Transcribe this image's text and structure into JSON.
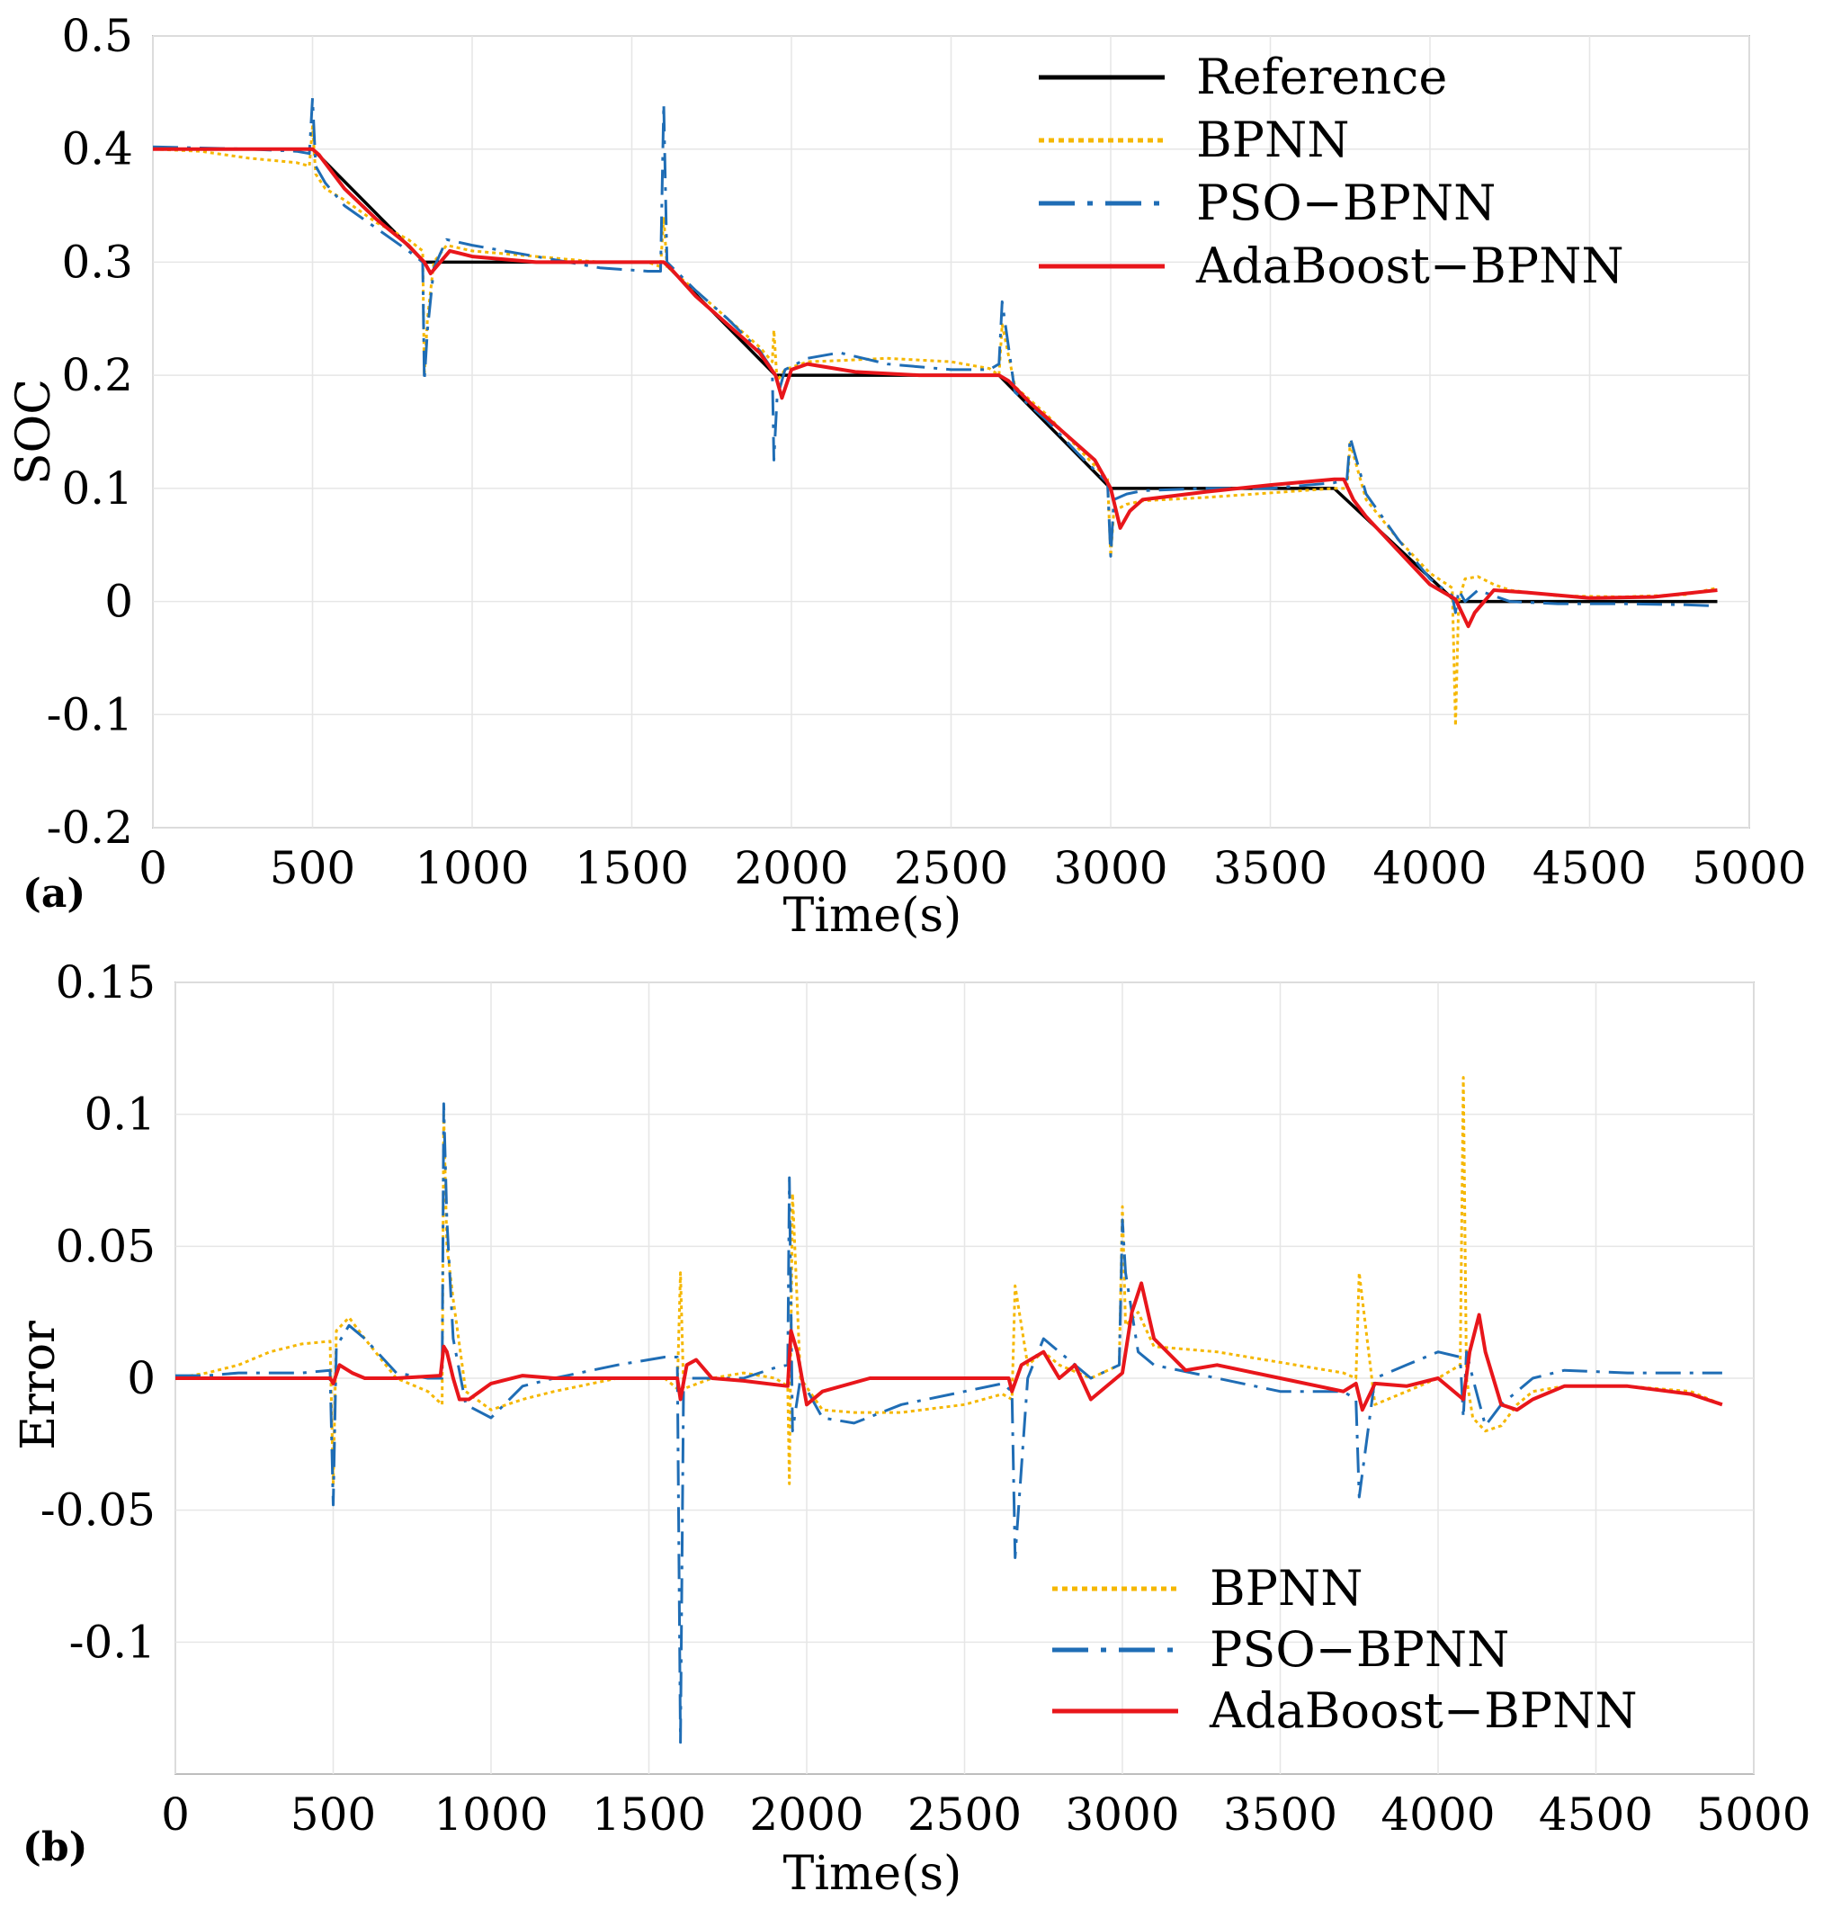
{
  "chart_data": [
    {
      "panel": "(a)",
      "type": "line",
      "xlabel": "Time(s)",
      "ylabel": "SOC",
      "xlim": [
        0,
        5000
      ],
      "ylim": [
        -0.2,
        0.5
      ],
      "xticks": [
        0,
        500,
        1000,
        1500,
        2000,
        2500,
        3000,
        3500,
        4000,
        4500,
        5000
      ],
      "yticks": [
        "0.5",
        "0.4",
        "0.3",
        "0.2",
        "0.1",
        "0",
        "-0.1",
        "-0.2"
      ],
      "legend_position": "top-right",
      "series": [
        {
          "name": "Reference",
          "color": "#000000",
          "style": "solid",
          "x": [
            0,
            500,
            850,
            1600,
            1950,
            2650,
            3000,
            3700,
            4080,
            4900
          ],
          "y": [
            0.4,
            0.4,
            0.3,
            0.3,
            0.2,
            0.2,
            0.1,
            0.1,
            0.0,
            0.0
          ]
        },
        {
          "name": "BPNN",
          "color": "#f5b700",
          "style": "dotted",
          "x": [
            0,
            150,
            300,
            450,
            490,
            500,
            510,
            540,
            600,
            700,
            800,
            845,
            850,
            860,
            880,
            920,
            1000,
            1200,
            1400,
            1550,
            1590,
            1600,
            1610,
            1700,
            1800,
            1900,
            1940,
            1945,
            1955,
            1980,
            2050,
            2150,
            2300,
            2500,
            2620,
            2650,
            2660,
            2700,
            2800,
            2900,
            2990,
            3000,
            3010,
            3050,
            3100,
            3300,
            3500,
            3700,
            3740,
            3750,
            3800,
            3900,
            4000,
            4070,
            4080,
            4090,
            4110,
            4150,
            4200,
            4250,
            4400,
            4600,
            4800,
            4900
          ],
          "y": [
            0.4,
            0.398,
            0.392,
            0.388,
            0.385,
            0.42,
            0.378,
            0.365,
            0.355,
            0.335,
            0.32,
            0.31,
            0.2,
            0.25,
            0.3,
            0.315,
            0.31,
            0.305,
            0.3,
            0.3,
            0.296,
            0.34,
            0.296,
            0.275,
            0.25,
            0.225,
            0.212,
            0.24,
            0.195,
            0.205,
            0.212,
            0.213,
            0.215,
            0.212,
            0.206,
            0.2,
            0.245,
            0.19,
            0.165,
            0.135,
            0.108,
            0.04,
            0.08,
            0.086,
            0.089,
            0.092,
            0.096,
            0.1,
            0.1,
            0.14,
            0.09,
            0.055,
            0.025,
            0.012,
            -0.11,
            0.0,
            0.02,
            0.022,
            0.015,
            0.01,
            0.005,
            0.004,
            0.006,
            0.012
          ]
        },
        {
          "name": "PSO−BPNN",
          "color": "#1f6db5",
          "style": "dash-dot",
          "x": [
            0,
            150,
            300,
            450,
            490,
            500,
            510,
            540,
            600,
            700,
            800,
            845,
            850,
            860,
            880,
            920,
            1000,
            1200,
            1400,
            1550,
            1590,
            1600,
            1610,
            1700,
            1800,
            1900,
            1940,
            1945,
            1955,
            1980,
            2050,
            2150,
            2300,
            2500,
            2620,
            2650,
            2660,
            2700,
            2800,
            2900,
            2990,
            3000,
            3010,
            3050,
            3100,
            3300,
            3500,
            3700,
            3740,
            3750,
            3800,
            3900,
            4000,
            4070,
            4080,
            4090,
            4110,
            4150,
            4200,
            4250,
            4400,
            4600,
            4800,
            4900
          ],
          "y": [
            0.402,
            0.401,
            0.4,
            0.398,
            0.396,
            0.445,
            0.385,
            0.37,
            0.35,
            0.33,
            0.31,
            0.3,
            0.195,
            0.24,
            0.295,
            0.32,
            0.315,
            0.305,
            0.295,
            0.292,
            0.292,
            0.44,
            0.3,
            0.275,
            0.25,
            0.222,
            0.205,
            0.125,
            0.18,
            0.205,
            0.215,
            0.22,
            0.21,
            0.205,
            0.205,
            0.21,
            0.265,
            0.185,
            0.16,
            0.13,
            0.105,
            0.04,
            0.09,
            0.095,
            0.098,
            0.1,
            0.1,
            0.105,
            0.108,
            0.145,
            0.095,
            0.055,
            0.02,
            0.005,
            -0.01,
            0.01,
            0.0,
            0.01,
            0.005,
            0.0,
            -0.002,
            -0.002,
            -0.003,
            -0.004
          ]
        },
        {
          "name": "AdaBoost−BPNN",
          "color": "#e8161b",
          "style": "solid",
          "x": [
            0,
            500,
            520,
            600,
            700,
            800,
            850,
            870,
            900,
            930,
            1000,
            1200,
            1400,
            1600,
            1620,
            1700,
            1800,
            1900,
            1950,
            1970,
            2000,
            2050,
            2200,
            2400,
            2600,
            2650,
            2680,
            2750,
            2850,
            2950,
            3000,
            3030,
            3060,
            3100,
            3300,
            3500,
            3700,
            3730,
            3760,
            3800,
            3900,
            4000,
            4080,
            4100,
            4120,
            4140,
            4200,
            4300,
            4500,
            4700,
            4900
          ],
          "y": [
            0.4,
            0.4,
            0.395,
            0.365,
            0.338,
            0.315,
            0.3,
            0.29,
            0.3,
            0.31,
            0.305,
            0.3,
            0.3,
            0.3,
            0.295,
            0.27,
            0.245,
            0.22,
            0.2,
            0.18,
            0.205,
            0.21,
            0.203,
            0.2,
            0.2,
            0.2,
            0.195,
            0.175,
            0.15,
            0.125,
            0.1,
            0.065,
            0.08,
            0.09,
            0.097,
            0.103,
            0.108,
            0.108,
            0.09,
            0.075,
            0.045,
            0.015,
            0.002,
            -0.01,
            -0.022,
            -0.01,
            0.01,
            0.008,
            0.003,
            0.004,
            0.01
          ]
        }
      ]
    },
    {
      "panel": "(b)",
      "type": "line",
      "xlabel": "Time(s)",
      "ylabel": "Error",
      "xlim": [
        0,
        5000
      ],
      "ylim": [
        -0.15,
        0.15
      ],
      "xticks": [
        0,
        500,
        1000,
        1500,
        2000,
        2500,
        3000,
        3500,
        4000,
        4500,
        5000
      ],
      "yticks": [
        "0.15",
        "0.1",
        "0.05",
        "0",
        "-0.05",
        "-0.1"
      ],
      "legend_position": "bottom-right",
      "series": [
        {
          "name": "BPNN",
          "color": "#f5b700",
          "style": "dotted",
          "x": [
            0,
            100,
            200,
            300,
            400,
            490,
            500,
            510,
            550,
            600,
            700,
            800,
            845,
            850,
            860,
            880,
            920,
            1000,
            1100,
            1200,
            1400,
            1550,
            1590,
            1600,
            1610,
            1700,
            1800,
            1900,
            1940,
            1945,
            1955,
            1980,
            2050,
            2150,
            2300,
            2500,
            2620,
            2650,
            2660,
            2700,
            2750,
            2800,
            2900,
            2990,
            3000,
            3010,
            3050,
            3100,
            3300,
            3500,
            3700,
            3740,
            3750,
            3800,
            3900,
            4000,
            4070,
            4080,
            4090,
            4110,
            4150,
            4200,
            4250,
            4300,
            4400,
            4600,
            4800,
            4900
          ],
          "y": [
            0.0,
            0.002,
            0.005,
            0.01,
            0.013,
            0.014,
            -0.04,
            0.018,
            0.023,
            0.015,
            0.0,
            -0.005,
            -0.01,
            0.1,
            0.05,
            0.03,
            -0.005,
            -0.012,
            -0.008,
            -0.005,
            0.0,
            0.0,
            -0.004,
            0.04,
            -0.004,
            0.0,
            0.002,
            0.0,
            -0.003,
            -0.04,
            0.07,
            0.0,
            -0.012,
            -0.013,
            -0.013,
            -0.01,
            -0.006,
            -0.008,
            0.035,
            0.005,
            0.01,
            0.005,
            0.0,
            0.005,
            0.065,
            0.02,
            0.025,
            0.012,
            0.01,
            0.006,
            0.002,
            0.0,
            0.04,
            -0.01,
            -0.005,
            0.0,
            0.005,
            0.114,
            0.0,
            -0.015,
            -0.02,
            -0.018,
            -0.01,
            -0.005,
            -0.003,
            -0.003,
            -0.005,
            -0.01
          ]
        },
        {
          "name": "PSO−BPNN",
          "color": "#1f6db5",
          "style": "dash-dot",
          "x": [
            0,
            100,
            200,
            300,
            400,
            490,
            500,
            510,
            550,
            600,
            700,
            800,
            845,
            850,
            860,
            880,
            920,
            1000,
            1100,
            1200,
            1400,
            1550,
            1590,
            1600,
            1610,
            1700,
            1800,
            1900,
            1940,
            1945,
            1955,
            1980,
            2050,
            2150,
            2300,
            2500,
            2620,
            2650,
            2660,
            2700,
            2750,
            2800,
            2900,
            2990,
            3000,
            3010,
            3050,
            3100,
            3300,
            3500,
            3700,
            3740,
            3750,
            3800,
            3900,
            4000,
            4070,
            4080,
            4090,
            4110,
            4150,
            4200,
            4250,
            4300,
            4400,
            4600,
            4800,
            4900
          ],
          "y": [
            0.001,
            0.001,
            0.002,
            0.002,
            0.002,
            0.003,
            -0.048,
            0.012,
            0.02,
            0.015,
            0.002,
            0.0,
            0.0,
            0.104,
            0.06,
            0.015,
            -0.01,
            -0.015,
            -0.003,
            0.0,
            0.005,
            0.008,
            0.008,
            -0.138,
            0.0,
            0.0,
            0.0,
            0.004,
            0.005,
            0.076,
            -0.02,
            0.0,
            -0.015,
            -0.017,
            -0.01,
            -0.005,
            -0.002,
            -0.005,
            -0.068,
            0.0,
            0.015,
            0.01,
            0.0,
            0.005,
            0.06,
            0.04,
            0.01,
            0.005,
            0.0,
            -0.005,
            -0.005,
            -0.008,
            -0.045,
            0.0,
            0.005,
            0.01,
            0.008,
            -0.015,
            0.01,
            0.0,
            -0.018,
            -0.01,
            -0.005,
            0.0,
            0.003,
            0.002,
            0.002,
            0.002
          ]
        },
        {
          "name": "AdaBoost−BPNN",
          "color": "#e8161b",
          "style": "solid",
          "x": [
            0,
            490,
            500,
            520,
            560,
            600,
            700,
            840,
            850,
            860,
            880,
            900,
            930,
            1000,
            1100,
            1200,
            1400,
            1590,
            1600,
            1620,
            1650,
            1700,
            1800,
            1940,
            1950,
            1970,
            2000,
            2050,
            2200,
            2400,
            2640,
            2650,
            2680,
            2750,
            2800,
            2850,
            2900,
            2990,
            3000,
            3030,
            3060,
            3100,
            3200,
            3300,
            3500,
            3700,
            3740,
            3760,
            3800,
            3900,
            4000,
            4080,
            4100,
            4130,
            4150,
            4200,
            4250,
            4300,
            4400,
            4600,
            4800,
            4900
          ],
          "y": [
            0.0,
            0.0,
            -0.002,
            0.005,
            0.002,
            0.0,
            0.0,
            0.001,
            0.012,
            0.01,
            0.0,
            -0.008,
            -0.008,
            -0.002,
            0.001,
            0.0,
            0.0,
            0.0,
            -0.008,
            0.005,
            0.007,
            0.0,
            -0.001,
            -0.003,
            0.018,
            0.01,
            -0.01,
            -0.005,
            0.0,
            0.0,
            0.0,
            -0.005,
            0.005,
            0.01,
            0.0,
            0.005,
            -0.008,
            0.001,
            0.002,
            0.025,
            0.036,
            0.015,
            0.003,
            0.005,
            0.0,
            -0.005,
            -0.002,
            -0.012,
            -0.002,
            -0.003,
            0.0,
            -0.008,
            0.01,
            0.024,
            0.01,
            -0.01,
            -0.012,
            -0.008,
            -0.003,
            -0.003,
            -0.006,
            -0.01
          ]
        }
      ]
    }
  ]
}
